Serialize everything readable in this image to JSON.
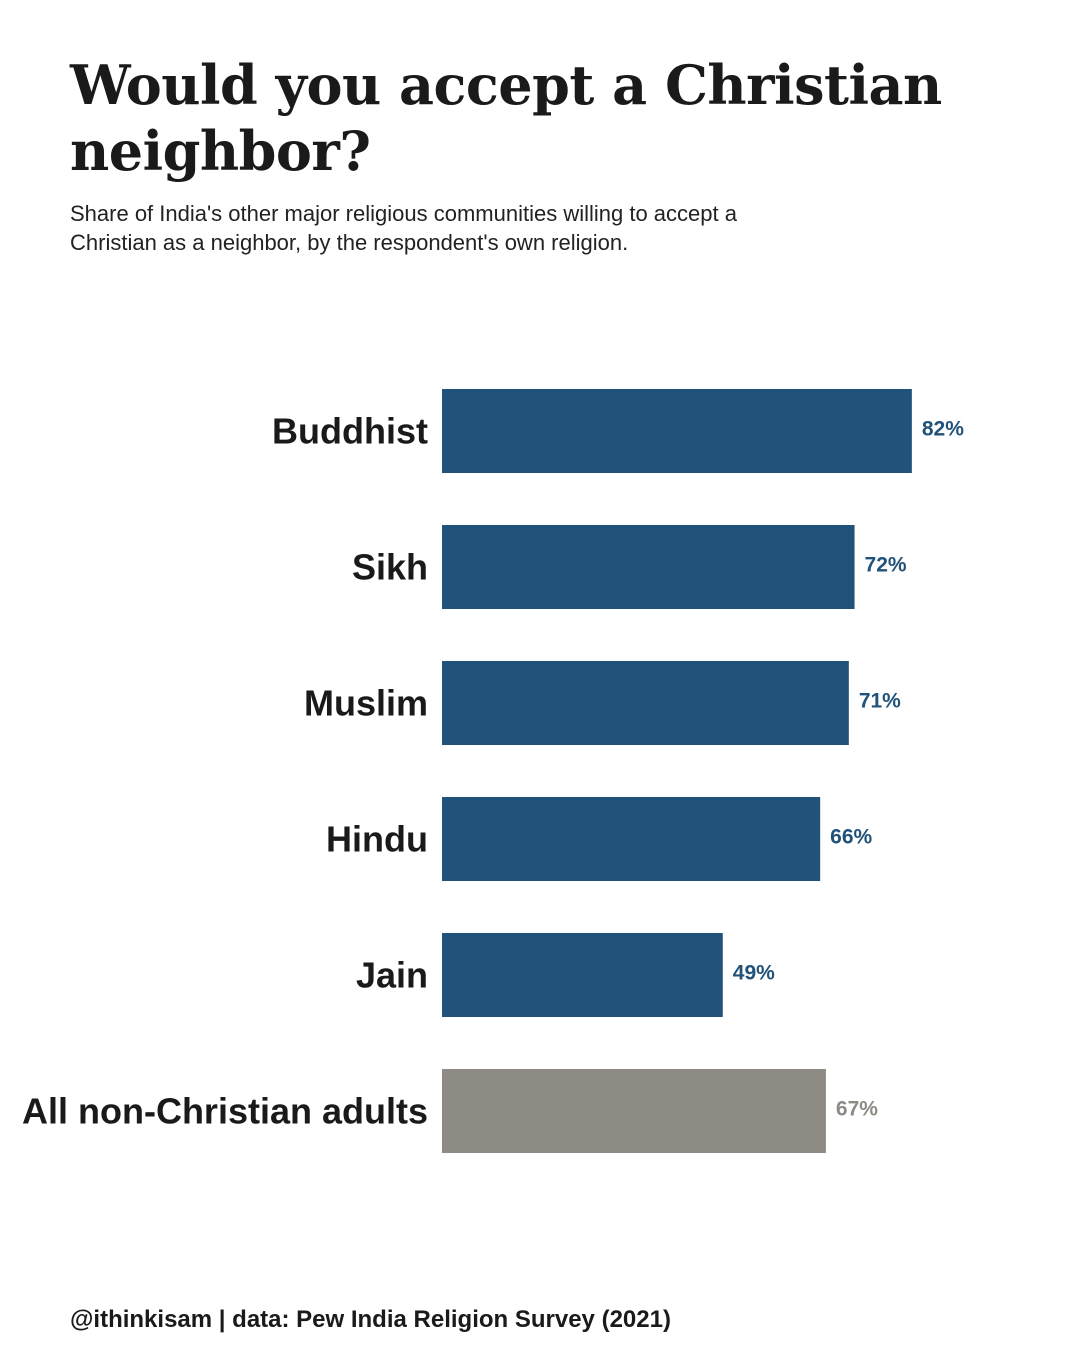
{
  "title": "Would you accept a Christian neighbor?",
  "subtitle": "Share of India's other major religious communities willing to accept a Christian as a neighbor, by the respondent's own religion.",
  "caption": "@ithinkisam | data: Pew India Religion Survey (2021)",
  "colors": {
    "primary_bar": "#21527A",
    "total_bar": "#8E8A84",
    "primary_label": "#21527A",
    "total_label": "#8E8A84"
  },
  "chart_data": {
    "type": "bar",
    "orientation": "horizontal",
    "categories": [
      "Buddhist",
      "Sikh",
      "Muslim",
      "Hindu",
      "Jain",
      "All non-Christian adults"
    ],
    "values": [
      82,
      72,
      71,
      66,
      49,
      67
    ],
    "value_labels": [
      "82%",
      "72%",
      "71%",
      "66%",
      "49%",
      "67%"
    ],
    "highlight": [
      "primary",
      "primary",
      "primary",
      "primary",
      "primary",
      "total"
    ],
    "unit": "%",
    "title": "Would you accept a Christian neighbor?",
    "xlabel": "",
    "ylabel": "",
    "xlim": [
      0,
      100
    ],
    "grid": false,
    "legend": "none"
  }
}
